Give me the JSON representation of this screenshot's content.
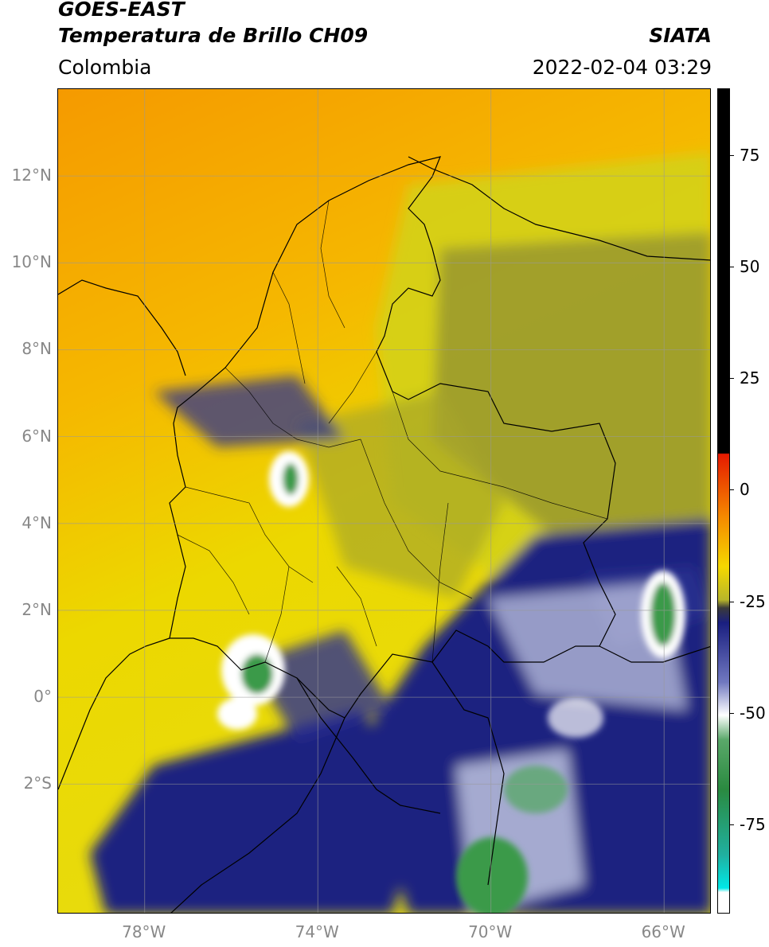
{
  "header": {
    "satellite": "GOES-EAST",
    "product": "Temperatura de Brillo CH09",
    "region": "Colombia",
    "agency": "SIATA",
    "datetime": "2022-02-04 03:29"
  },
  "map": {
    "lon_range": [
      -80.0,
      -64.9
    ],
    "lat_range": [
      -5.0,
      14.0
    ],
    "lat_ticks": [
      {
        "value": 12,
        "label": "12°N"
      },
      {
        "value": 10,
        "label": "10°N"
      },
      {
        "value": 8,
        "label": "8°N"
      },
      {
        "value": 6,
        "label": "6°N"
      },
      {
        "value": 4,
        "label": "4°N"
      },
      {
        "value": 2,
        "label": "2°N"
      },
      {
        "value": 0,
        "label": "0°"
      },
      {
        "value": -2,
        "label": "2°S"
      }
    ],
    "lon_ticks": [
      {
        "value": -78,
        "label": "78°W"
      },
      {
        "value": -74,
        "label": "74°W"
      },
      {
        "value": -70,
        "label": "70°W"
      },
      {
        "value": -66,
        "label": "66°W"
      }
    ],
    "colors": {
      "warm": "#f5a000",
      "mid": "#e8e000",
      "olive": "#8a8a30",
      "cold": "#1a1f80",
      "very_cold": "#ffffff",
      "coldest": "#3a9a4a",
      "border": "#000000",
      "grid": "#999999"
    }
  },
  "colorbar": {
    "range": [
      -95,
      90
    ],
    "ticks": [
      {
        "value": 75,
        "label": "75"
      },
      {
        "value": 50,
        "label": "50"
      },
      {
        "value": 25,
        "label": "25"
      },
      {
        "value": 0,
        "label": "0"
      },
      {
        "value": -25,
        "label": "-25"
      },
      {
        "value": -50,
        "label": "-50"
      },
      {
        "value": -75,
        "label": "-75"
      }
    ]
  }
}
